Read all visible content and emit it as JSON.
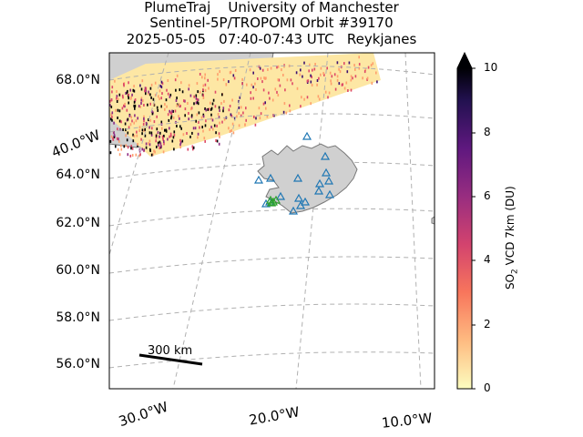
{
  "title": {
    "line1": "PlumeTraj    University of Manchester",
    "line2": "Sentinel-5P/TROPOMI Orbit #39170",
    "line3": "2025-05-05   07:40-07:43 UTC   Reykjanes"
  },
  "lat_labels": [
    "68.0°N",
    "64.0°N",
    "62.0°N",
    "60.0°N",
    "58.0°N",
    "56.0°N"
  ],
  "lon_labels": {
    "left_edge": "40.0°W",
    "bottom": [
      "30.0°W",
      "20.0°W",
      "10.0°W"
    ]
  },
  "scale_bar": {
    "label": "300 km"
  },
  "colorbar": {
    "label_prefix": "SO",
    "label_sub": "2",
    "label_suffix": " VCD 7km (DU)",
    "ticks": [
      "0",
      "2",
      "4",
      "6",
      "8",
      "10"
    ],
    "range": [
      0,
      10
    ],
    "extend": "max",
    "colormap": "magma_r"
  },
  "colors": {
    "land": "#d0d0d0",
    "coast": "#777777",
    "grid": "#b0b0b0",
    "volcano_triangle": "#1f77b4",
    "active_volcano": "#2ca02c"
  },
  "volcano_marker": "triangle-icon",
  "active_volcano_marker": "triangle-icon"
}
